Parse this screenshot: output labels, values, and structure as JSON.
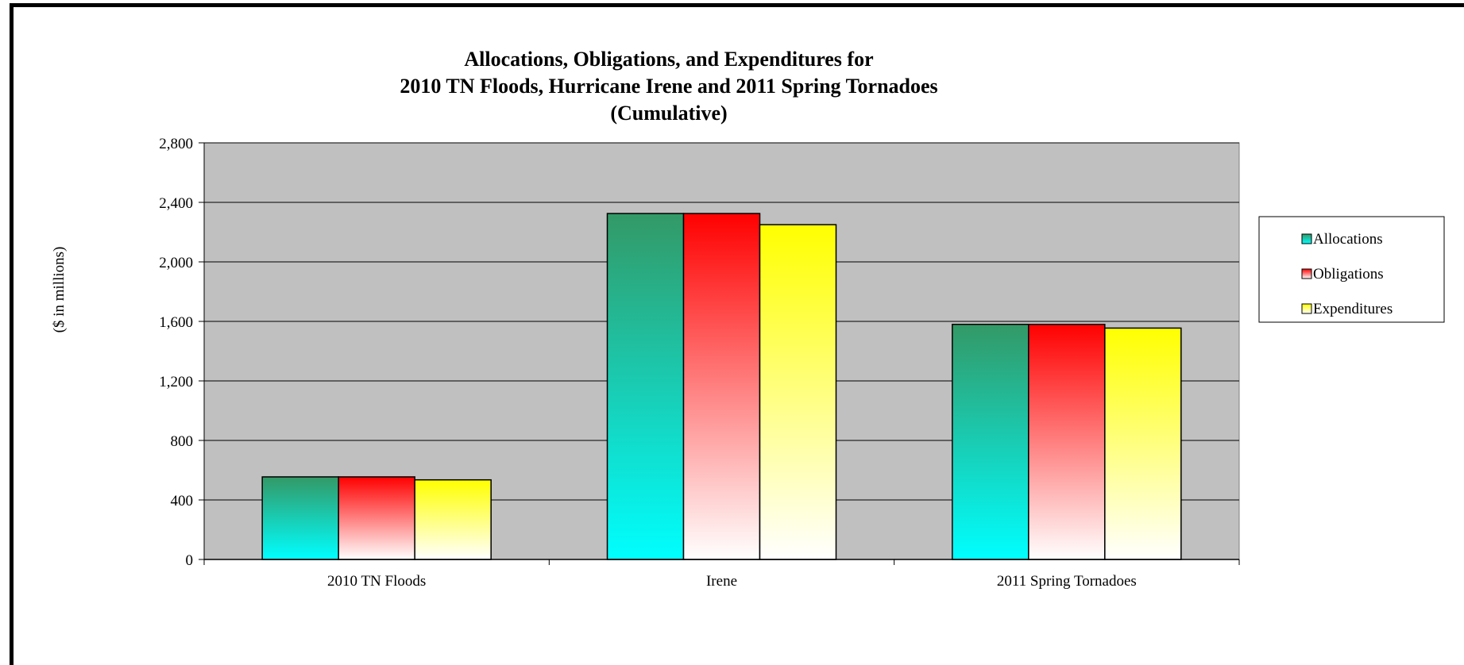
{
  "chart_data": {
    "type": "bar",
    "title": [
      "Allocations, Obligations, and Expenditures for",
      "2010 TN Floods, Hurricane Irene and 2011 Spring Tornadoes",
      "(Cumulative)"
    ],
    "xlabel": "",
    "ylabel": "($ in millions)",
    "ylim": [
      0,
      2800
    ],
    "yticks": [
      0,
      400,
      800,
      1200,
      1600,
      2000,
      2400,
      2800
    ],
    "ytick_labels": [
      "0",
      "400",
      "800",
      "1,200",
      "1,600",
      "2,000",
      "2,400",
      "2,800"
    ],
    "categories": [
      "2010 TN Floods",
      "Irene",
      "2011 Spring Tornadoes"
    ],
    "series": [
      {
        "name": "Allocations",
        "values": [
          555,
          2325,
          1580
        ],
        "color_top": "#339966",
        "color_bottom": "#00ffff"
      },
      {
        "name": "Obligations",
        "values": [
          555,
          2325,
          1580
        ],
        "color_top": "#ff0000",
        "color_bottom": "#ffffff"
      },
      {
        "name": "Expenditures",
        "values": [
          535,
          2250,
          1555
        ],
        "color_top": "#ffff00",
        "color_bottom": "#ffffff"
      }
    ],
    "grid": true,
    "plot_background": "#c0c0c0",
    "legend_position": "right"
  }
}
